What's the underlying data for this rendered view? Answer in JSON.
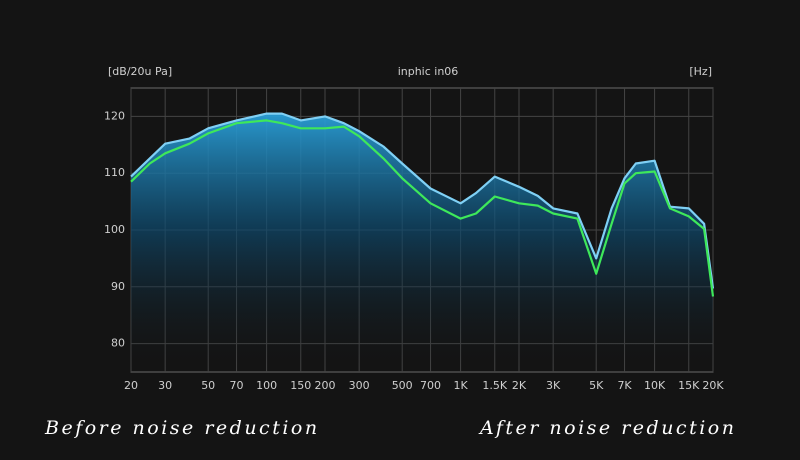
{
  "chart_data": {
    "type": "line",
    "y_unit_label": "[dB/20u Pa]",
    "title": "inphic in06",
    "x_unit_label": "[Hz]",
    "log_x": true,
    "grid": true,
    "xlim": [
      20,
      20000
    ],
    "ylim": [
      75,
      125
    ],
    "xticks": [
      20,
      30,
      50,
      70,
      100,
      150,
      200,
      300,
      500,
      700,
      {
        "value": 1000,
        "label": "1K"
      },
      {
        "value": 1500,
        "label": "1.5K"
      },
      {
        "value": 2000,
        "label": "2K"
      },
      {
        "value": 3000,
        "label": "3K"
      },
      {
        "value": 5000,
        "label": "5K"
      },
      {
        "value": 7000,
        "label": "7K"
      },
      {
        "value": 10000,
        "label": "10K"
      },
      {
        "value": 15000,
        "label": "15K"
      },
      {
        "value": 20000,
        "label": "20K"
      }
    ],
    "yticks": [
      80,
      90,
      100,
      110,
      120
    ],
    "x": [
      20,
      25,
      30,
      40,
      50,
      70,
      100,
      120,
      150,
      200,
      250,
      300,
      400,
      500,
      700,
      1000,
      1200,
      1500,
      2000,
      2500,
      3000,
      4000,
      5000,
      6000,
      7000,
      8000,
      10000,
      12000,
      15000,
      18000,
      20000
    ],
    "series": [
      {
        "name": "Before noise reduction",
        "color": "#7fd0f5",
        "values": [
          109.4,
          112.6,
          115.2,
          116.1,
          117.9,
          119.3,
          120.5,
          120.5,
          119.3,
          120,
          118.8,
          117.4,
          114.7,
          111.7,
          107.3,
          104.7,
          106.5,
          109.4,
          107.6,
          106,
          103.8,
          102.9,
          95,
          103.8,
          109.1,
          111.7,
          112.2,
          104.1,
          103.8,
          101.1,
          89.7
        ]
      },
      {
        "name": "After noise reduction",
        "color": "#3ee85a",
        "values": [
          108.5,
          111.7,
          113.5,
          115.2,
          117,
          118.8,
          119.3,
          118.8,
          117.9,
          117.9,
          118.2,
          116.5,
          112.6,
          109.1,
          104.7,
          102,
          102.9,
          105.9,
          104.7,
          104.3,
          102.9,
          102,
          92.3,
          101.1,
          108.2,
          110,
          110.3,
          103.8,
          102.4,
          100.2,
          88.3
        ]
      }
    ]
  }
}
